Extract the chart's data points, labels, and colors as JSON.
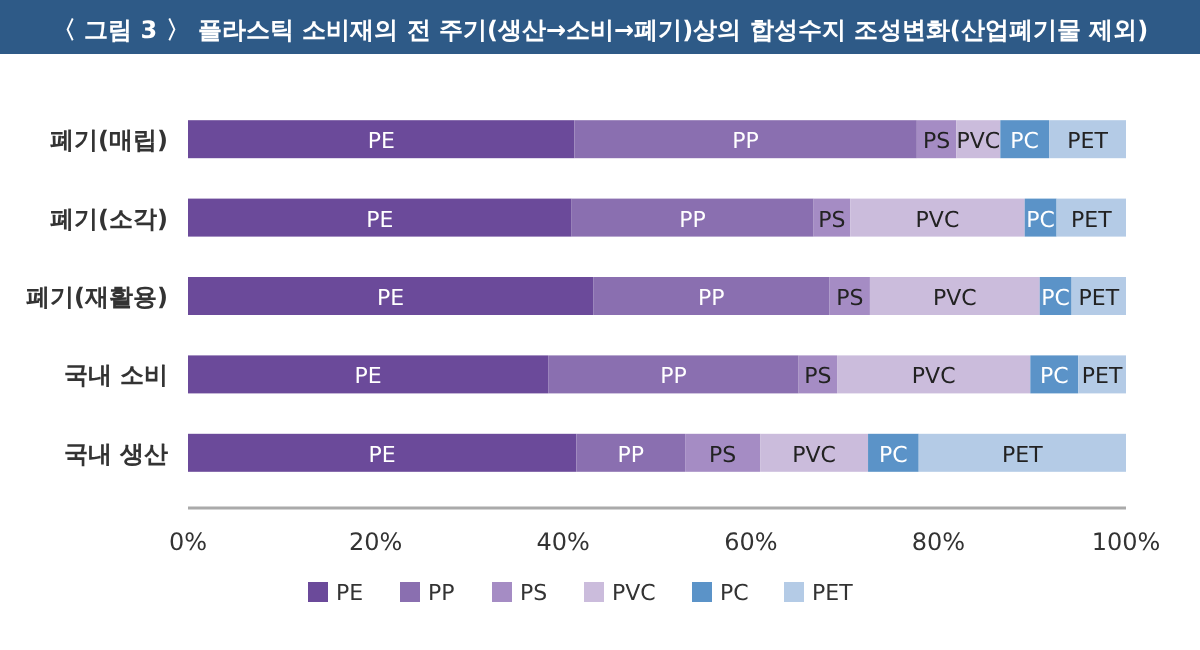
{
  "chart_data": {
    "type": "bar",
    "title": "〈 그림 3 〉 플라스틱 소비재의 전 주기(생산→소비→폐기)상의 합성수지 조성변화(산업폐기물 제외)",
    "orientation": "horizontal",
    "stacked": true,
    "categories": [
      "폐기(매립)",
      "폐기(소각)",
      "폐기(재활용)",
      "국내 소비",
      "국내 생산"
    ],
    "series": [
      {
        "name": "PE",
        "color": "#6b4a9a",
        "values": [
          41.2,
          40.9,
          43.2,
          38.4,
          41.4
        ]
      },
      {
        "name": "PP",
        "color": "#8a6fb0",
        "values": [
          36.5,
          25.8,
          25.2,
          26.7,
          11.6
        ]
      },
      {
        "name": "PS",
        "color": "#a58cc4",
        "values": [
          4.2,
          3.9,
          4.3,
          4.1,
          8.0
        ]
      },
      {
        "name": "PVC",
        "color": "#cbbcdc",
        "values": [
          4.7,
          18.6,
          18.1,
          20.6,
          11.5
        ]
      },
      {
        "name": "PC",
        "color": "#5b93c8",
        "values": [
          5.2,
          3.4,
          3.4,
          5.1,
          5.4
        ]
      },
      {
        "name": "PET",
        "color": "#b4cbe6",
        "values": [
          8.2,
          7.4,
          5.8,
          5.1,
          22.1
        ]
      }
    ],
    "xlim": [
      0,
      100
    ],
    "xticks": [
      {
        "value": 0,
        "label": "0%"
      },
      {
        "value": 20,
        "label": "20%"
      },
      {
        "value": 40,
        "label": "40%"
      },
      {
        "value": 60,
        "label": "60%"
      },
      {
        "value": 80,
        "label": "80%"
      },
      {
        "value": 100,
        "label": "100%"
      }
    ],
    "legend": "bottom"
  }
}
